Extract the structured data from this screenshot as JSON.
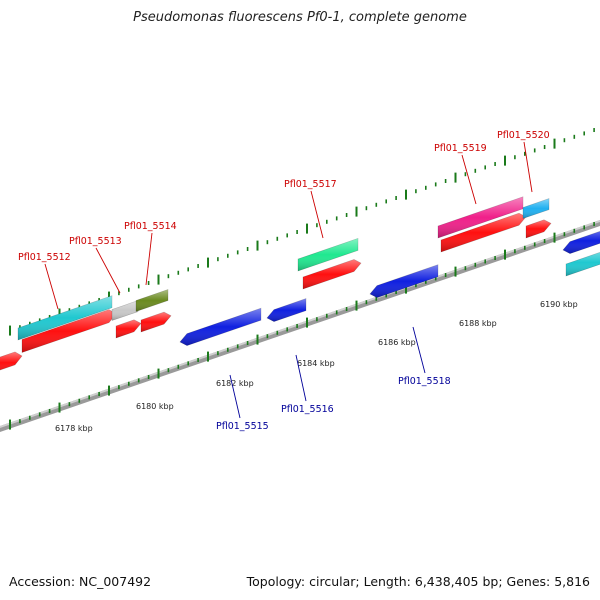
{
  "title": "Pseudomonas fluorescens Pf0-1, complete genome",
  "footer": {
    "accession": "Accession: NC_007492",
    "summary": "Topology: circular; Length: 6,438,405 bp; Genes: 5,816"
  },
  "scale_labels": [
    "6178 kbp",
    "6180 kbp",
    "6182 kbp",
    "6184 kbp",
    "6186 kbp",
    "6188 kbp",
    "6190 kbp"
  ],
  "forward_gene_labels": [
    "Pfl01_5512",
    "Pfl01_5513",
    "Pfl01_5514",
    "Pfl01_5517",
    "Pfl01_5519",
    "Pfl01_5520"
  ],
  "reverse_gene_labels": [
    "Pfl01_5515",
    "Pfl01_5516",
    "Pfl01_5518"
  ],
  "colors": {
    "forward_label": "#cc0000",
    "reverse_label": "#000099",
    "tick": "#1a7a1a",
    "backbone": "#888888",
    "red": "#ff1010",
    "blue": "#1020e0",
    "cyan": "#20c8d0",
    "gray": "#c8c8c8",
    "olive": "#6a8a20",
    "green": "#20e890",
    "magenta": "#f0208a",
    "sky": "#20b0f0"
  }
}
